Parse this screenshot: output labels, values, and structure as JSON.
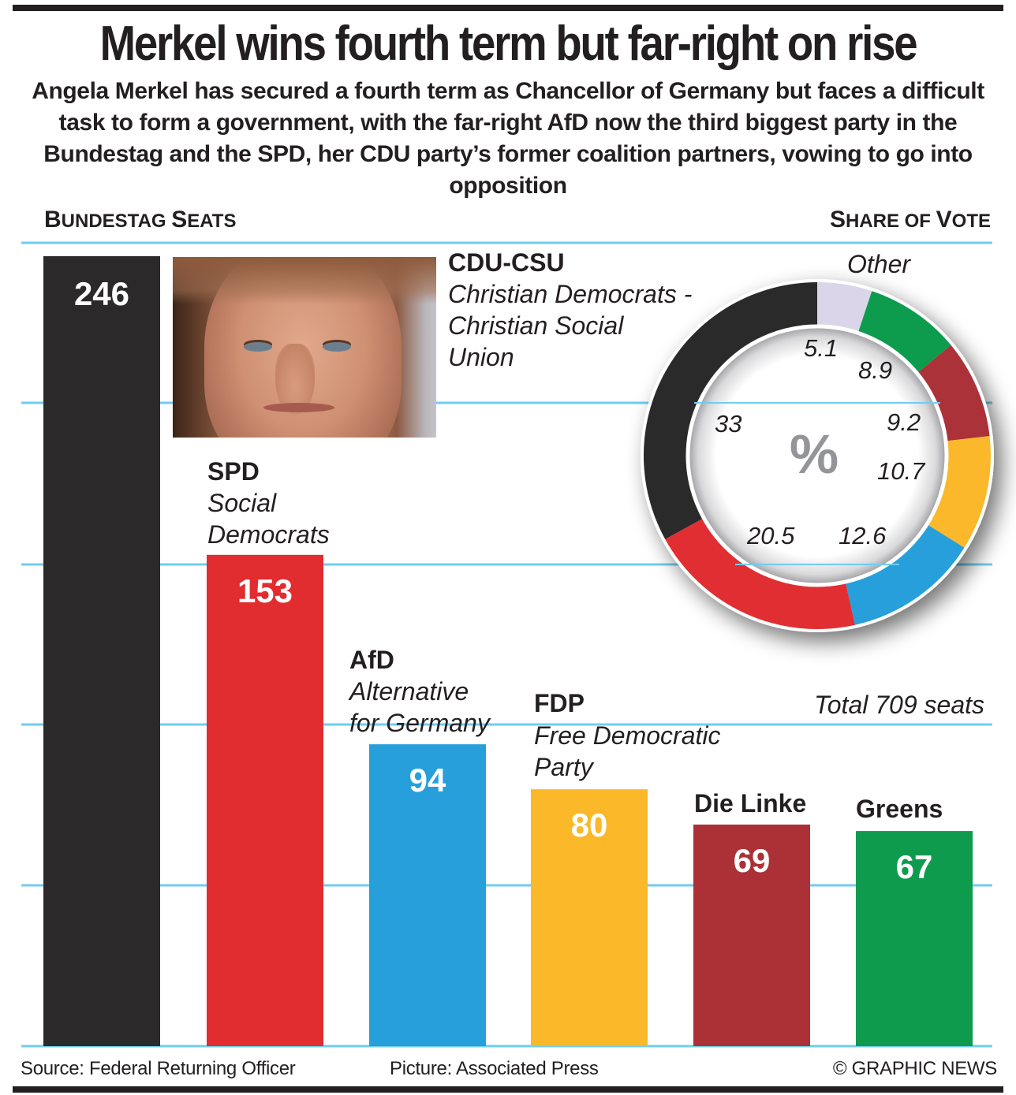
{
  "headline": "Merkel wins fourth term but far-right on rise",
  "subhead": "Angela Merkel has secured a fourth term as Chancellor of Germany but faces a difficult task to form a government, with the far-right AfD now the third biggest party in the Bundestag and the SPD, her CDU party’s former coalition partners, vowing to go into opposition",
  "sections": {
    "seats_title_big1": "B",
    "seats_title_small1": "UNDESTAG ",
    "seats_title_big2": "S",
    "seats_title_small2": "EATS",
    "vote_title_big1": "S",
    "vote_title_small1": "HARE OF ",
    "vote_title_big2": "V",
    "vote_title_small2": "OTE"
  },
  "total_seats_label": "Total 709 seats",
  "photo_alt": "Angela Merkel portrait",
  "footer": {
    "source": "Source: Federal Returning Officer",
    "picture": "Picture: Associated Press",
    "credit": "© GRAPHIC NEWS"
  },
  "chart_data": [
    {
      "type": "bar",
      "title": "Bundestag Seats",
      "categories": [
        "CDU-CSU",
        "SPD",
        "AfD",
        "FDP",
        "Die Linke",
        "Greens"
      ],
      "full_names": [
        [
          "Christian Democrats -",
          "Christian Social",
          "Union"
        ],
        [
          "Social",
          "Democrats"
        ],
        [
          "Alternative",
          "for Germany"
        ],
        [
          "Free Democratic",
          "Party"
        ],
        [],
        []
      ],
      "values": [
        246,
        153,
        94,
        80,
        69,
        67
      ],
      "colors": [
        "#2b292a",
        "#e12d30",
        "#279fda",
        "#fbb829",
        "#ab3137",
        "#0f9b4d"
      ],
      "ylim": [
        0,
        246
      ],
      "grid": true,
      "gridline_color": "#6fcdf0",
      "total": 709
    },
    {
      "type": "pie",
      "title": "Share of Vote",
      "center_label": "%",
      "categories": [
        "CDU-CSU",
        "SPD",
        "AfD",
        "FDP",
        "Die Linke",
        "Greens",
        "Other"
      ],
      "values": [
        33,
        20.5,
        12.6,
        10.7,
        9.2,
        8.9,
        5.1
      ],
      "labels": [
        "33",
        "20.5",
        "12.6",
        "10.7",
        "9.2",
        "8.9",
        "5.1"
      ],
      "colors": [
        "#2b292a",
        "#e12d30",
        "#279fda",
        "#fbb829",
        "#ab3137",
        "#0f9b4d",
        "#dad5e8"
      ],
      "annotations": [
        "Other"
      ],
      "style": "donut"
    }
  ]
}
